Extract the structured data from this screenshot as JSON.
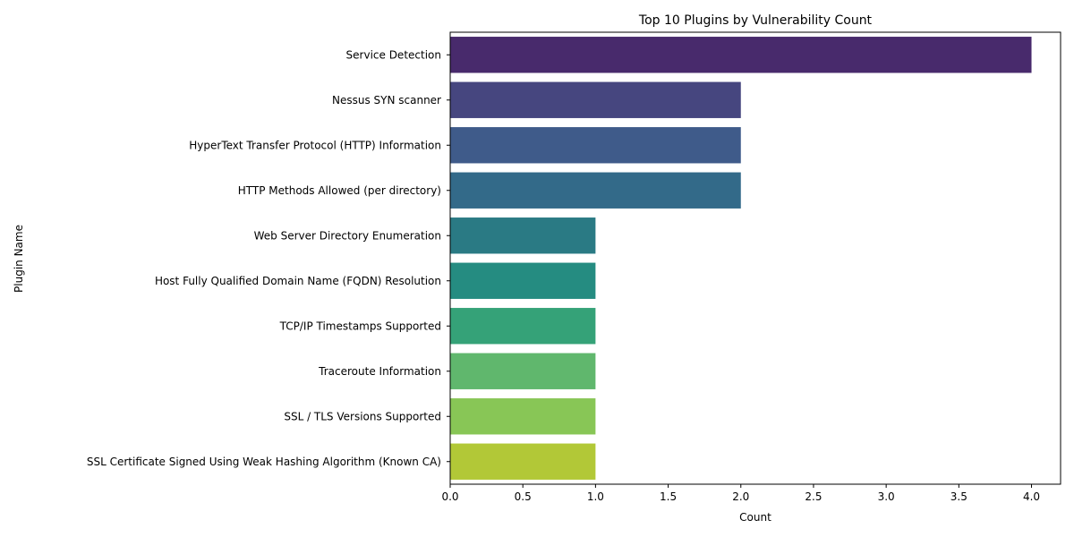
{
  "chart_data": {
    "type": "bar",
    "orientation": "horizontal",
    "title": "Top 10 Plugins by Vulnerability Count",
    "xlabel": "Count",
    "ylabel": "Plugin Name",
    "xlim": [
      0,
      4.2
    ],
    "xticks": [
      0.0,
      0.5,
      1.0,
      1.5,
      2.0,
      2.5,
      3.0,
      3.5,
      4.0
    ],
    "xtick_labels": [
      "0.0",
      "0.5",
      "1.0",
      "1.5",
      "2.0",
      "2.5",
      "3.0",
      "3.5",
      "4.0"
    ],
    "grid": false,
    "categories": [
      "Service Detection",
      "Nessus SYN scanner",
      "HyperText Transfer Protocol (HTTP) Information",
      "HTTP Methods Allowed (per directory)",
      "Web Server Directory Enumeration",
      "Host Fully Qualified Domain Name (FQDN) Resolution",
      "TCP/IP Timestamps Supported",
      "Traceroute Information",
      "SSL / TLS Versions Supported",
      "SSL Certificate Signed Using Weak Hashing Algorithm (Known CA)"
    ],
    "values": [
      4,
      2,
      2,
      2,
      1,
      1,
      1,
      1,
      1,
      1
    ],
    "colors": [
      "#482a6c",
      "#46467f",
      "#3f5b8a",
      "#336a89",
      "#2a7a84",
      "#258c81",
      "#35a278",
      "#60b76d",
      "#88c656",
      "#b2c837"
    ]
  }
}
